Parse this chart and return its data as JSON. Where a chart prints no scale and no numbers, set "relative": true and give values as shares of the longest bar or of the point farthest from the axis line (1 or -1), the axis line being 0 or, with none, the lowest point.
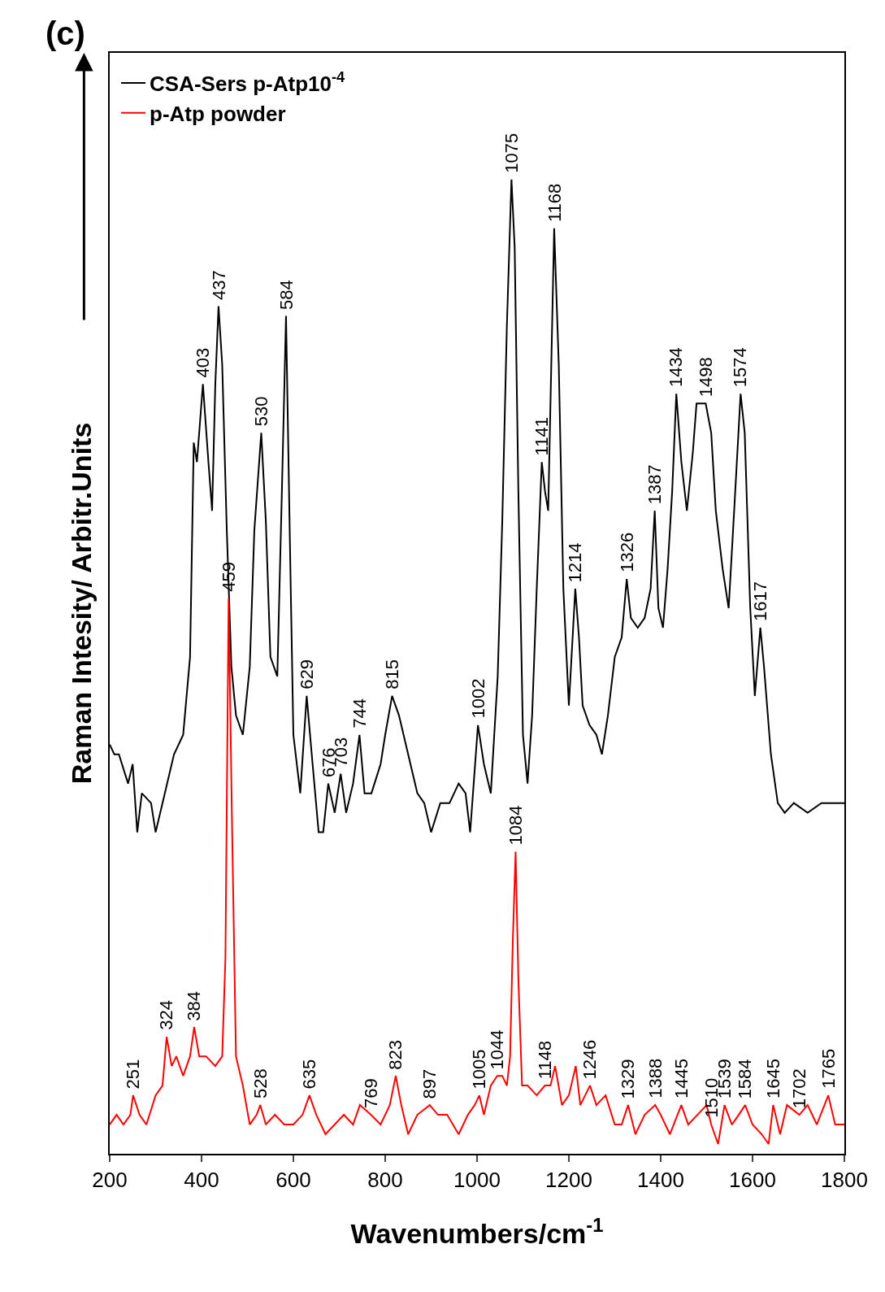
{
  "chart_data": {
    "type": "line",
    "relative": true,
    "xlabel": "Wavenumbers/cm$^{-1}$",
    "ylabel": "Raman Intesity/ Arbitr.Units",
    "xlim": [
      200,
      1800
    ],
    "xticks": [
      200,
      400,
      600,
      800,
      1000,
      1200,
      1400,
      1600,
      1800
    ],
    "legend": "top left",
    "marker": "none",
    "line_style": "solid",
    "series": [
      {
        "name": "CSA-Sers p-Atp10$^{-4}$",
        "color": "#000000",
        "x": [
          200,
          210,
          220,
          240,
          250,
          260,
          270,
          290,
          300,
          320,
          340,
          360,
          375,
          383,
          390,
          403,
          415,
          423,
          430,
          437,
          445,
          455,
          465,
          475,
          490,
          505,
          515,
          530,
          540,
          550,
          565,
          575,
          584,
          592,
          600,
          615,
          629,
          640,
          655,
          665,
          676,
          690,
          703,
          715,
          730,
          744,
          755,
          770,
          790,
          800,
          815,
          830,
          850,
          870,
          885,
          900,
          920,
          940,
          960,
          975,
          985,
          1002,
          1015,
          1030,
          1045,
          1055,
          1065,
          1075,
          1082,
          1090,
          1100,
          1110,
          1120,
          1130,
          1141,
          1148,
          1155,
          1168,
          1178,
          1188,
          1200,
          1214,
          1222,
          1230,
          1245,
          1260,
          1272,
          1285,
          1300,
          1315,
          1326,
          1335,
          1350,
          1365,
          1378,
          1387,
          1395,
          1405,
          1415,
          1425,
          1434,
          1445,
          1457,
          1470,
          1478,
          1490,
          1498,
          1510,
          1520,
          1535,
          1548,
          1560,
          1574,
          1583,
          1595,
          1605,
          1617,
          1625,
          1640,
          1655,
          1670,
          1690,
          1720,
          1750,
          1780,
          1800
        ],
        "values": [
          0.42,
          0.41,
          0.41,
          0.38,
          0.4,
          0.33,
          0.37,
          0.36,
          0.33,
          0.37,
          0.41,
          0.43,
          0.51,
          0.73,
          0.71,
          0.79,
          0.71,
          0.66,
          0.79,
          0.87,
          0.81,
          0.64,
          0.5,
          0.45,
          0.43,
          0.5,
          0.64,
          0.74,
          0.65,
          0.51,
          0.49,
          0.68,
          0.86,
          0.64,
          0.43,
          0.37,
          0.47,
          0.41,
          0.33,
          0.33,
          0.38,
          0.35,
          0.39,
          0.35,
          0.38,
          0.43,
          0.37,
          0.37,
          0.4,
          0.43,
          0.47,
          0.45,
          0.41,
          0.37,
          0.36,
          0.33,
          0.36,
          0.36,
          0.38,
          0.37,
          0.33,
          0.44,
          0.4,
          0.37,
          0.49,
          0.65,
          0.85,
          1.0,
          0.93,
          0.68,
          0.43,
          0.38,
          0.45,
          0.58,
          0.71,
          0.68,
          0.66,
          0.95,
          0.81,
          0.58,
          0.46,
          0.58,
          0.53,
          0.46,
          0.44,
          0.43,
          0.41,
          0.45,
          0.51,
          0.53,
          0.59,
          0.55,
          0.54,
          0.55,
          0.58,
          0.66,
          0.56,
          0.54,
          0.6,
          0.68,
          0.78,
          0.71,
          0.66,
          0.72,
          0.77,
          0.77,
          0.77,
          0.74,
          0.66,
          0.6,
          0.56,
          0.66,
          0.78,
          0.74,
          0.56,
          0.47,
          0.54,
          0.5,
          0.41,
          0.36,
          0.35,
          0.36,
          0.35,
          0.36,
          0.36,
          0.36
        ]
      },
      {
        "name": "p-Atp powder",
        "color": "#ff0000",
        "x": [
          200,
          215,
          230,
          245,
          251,
          265,
          280,
          300,
          315,
          324,
          335,
          345,
          360,
          375,
          384,
          395,
          410,
          430,
          445,
          452,
          459,
          466,
          475,
          490,
          505,
          520,
          528,
          540,
          560,
          580,
          600,
          620,
          635,
          650,
          670,
          690,
          710,
          730,
          745,
          769,
          790,
          810,
          823,
          835,
          850,
          870,
          897,
          915,
          935,
          960,
          980,
          995,
          1005,
          1015,
          1030,
          1044,
          1055,
          1065,
          1072,
          1078,
          1084,
          1090,
          1098,
          1110,
          1130,
          1148,
          1160,
          1170,
          1185,
          1200,
          1215,
          1225,
          1246,
          1260,
          1280,
          1300,
          1315,
          1329,
          1345,
          1365,
          1388,
          1400,
          1420,
          1445,
          1460,
          1480,
          1500,
          1510,
          1525,
          1539,
          1555,
          1570,
          1584,
          1600,
          1620,
          1635,
          1645,
          1660,
          1675,
          1702,
          1720,
          1740,
          1765,
          1780,
          1800
        ],
        "values": [
          0.03,
          0.04,
          0.03,
          0.04,
          0.06,
          0.04,
          0.03,
          0.06,
          0.07,
          0.12,
          0.09,
          0.1,
          0.08,
          0.1,
          0.13,
          0.1,
          0.1,
          0.09,
          0.1,
          0.2,
          0.57,
          0.35,
          0.1,
          0.07,
          0.03,
          0.04,
          0.05,
          0.03,
          0.04,
          0.03,
          0.03,
          0.04,
          0.06,
          0.04,
          0.02,
          0.03,
          0.04,
          0.03,
          0.05,
          0.04,
          0.03,
          0.05,
          0.08,
          0.05,
          0.02,
          0.04,
          0.05,
          0.04,
          0.04,
          0.02,
          0.04,
          0.05,
          0.06,
          0.04,
          0.07,
          0.08,
          0.08,
          0.07,
          0.1,
          0.22,
          0.31,
          0.18,
          0.07,
          0.07,
          0.06,
          0.07,
          0.07,
          0.09,
          0.05,
          0.06,
          0.09,
          0.05,
          0.07,
          0.05,
          0.06,
          0.03,
          0.03,
          0.05,
          0.02,
          0.04,
          0.05,
          0.04,
          0.02,
          0.05,
          0.03,
          0.04,
          0.05,
          0.03,
          0.01,
          0.05,
          0.03,
          0.04,
          0.05,
          0.03,
          0.02,
          0.01,
          0.05,
          0.02,
          0.05,
          0.04,
          0.05,
          0.03,
          0.06,
          0.03,
          0.03
        ]
      }
    ],
    "annotations": [
      "(c)",
      {
        "text": "403",
        "x": 403,
        "y": 0.79
      },
      {
        "text": "437",
        "x": 437,
        "y": 0.87
      },
      {
        "text": "530",
        "x": 530,
        "y": 0.74
      },
      {
        "text": "584",
        "x": 584,
        "y": 0.86
      },
      {
        "text": "629",
        "x": 629,
        "y": 0.47
      },
      {
        "text": "676",
        "x": 676,
        "y": 0.38
      },
      {
        "text": "703",
        "x": 703,
        "y": 0.39
      },
      {
        "text": "744",
        "x": 744,
        "y": 0.43
      },
      {
        "text": "815",
        "x": 815,
        "y": 0.47
      },
      {
        "text": "1002",
        "x": 1002,
        "y": 0.44
      },
      {
        "text": "1075",
        "x": 1075,
        "y": 1.0
      },
      {
        "text": "1141",
        "x": 1141,
        "y": 0.71
      },
      {
        "text": "1168",
        "x": 1168,
        "y": 0.95
      },
      {
        "text": "1214",
        "x": 1214,
        "y": 0.58
      },
      {
        "text": "1326",
        "x": 1326,
        "y": 0.59
      },
      {
        "text": "1387",
        "x": 1387,
        "y": 0.66
      },
      {
        "text": "1434",
        "x": 1434,
        "y": 0.78
      },
      {
        "text": "1498",
        "x": 1498,
        "y": 0.77
      },
      {
        "text": "1574",
        "x": 1574,
        "y": 0.78
      },
      {
        "text": "1617",
        "x": 1617,
        "y": 0.54
      },
      {
        "text": "251",
        "x": 251,
        "y": 0.06
      },
      {
        "text": "324",
        "x": 324,
        "y": 0.12
      },
      {
        "text": "384",
        "x": 384,
        "y": 0.13
      },
      {
        "text": "459",
        "x": 459,
        "y": 0.57
      },
      {
        "text": "528",
        "x": 528,
        "y": 0.05
      },
      {
        "text": "635",
        "x": 635,
        "y": 0.06
      },
      {
        "text": "769",
        "x": 769,
        "y": 0.04
      },
      {
        "text": "823",
        "x": 823,
        "y": 0.08
      },
      {
        "text": "897",
        "x": 897,
        "y": 0.05
      },
      {
        "text": "1005",
        "x": 1005,
        "y": 0.06
      },
      {
        "text": "1044",
        "x": 1044,
        "y": 0.08
      },
      {
        "text": "1084",
        "x": 1084,
        "y": 0.31
      },
      {
        "text": "1148",
        "x": 1148,
        "y": 0.07
      },
      {
        "text": "1246",
        "x": 1246,
        "y": 0.07
      },
      {
        "text": "1329",
        "x": 1329,
        "y": 0.05
      },
      {
        "text": "1388",
        "x": 1388,
        "y": 0.05
      },
      {
        "text": "1445",
        "x": 1445,
        "y": 0.05
      },
      {
        "text": "1510",
        "x": 1510,
        "y": 0.03
      },
      {
        "text": "1539",
        "x": 1539,
        "y": 0.05
      },
      {
        "text": "1584",
        "x": 1584,
        "y": 0.05
      },
      {
        "text": "1645",
        "x": 1645,
        "y": 0.05
      },
      {
        "text": "1702",
        "x": 1702,
        "y": 0.04
      },
      {
        "text": "1765",
        "x": 1765,
        "y": 0.06
      }
    ]
  }
}
